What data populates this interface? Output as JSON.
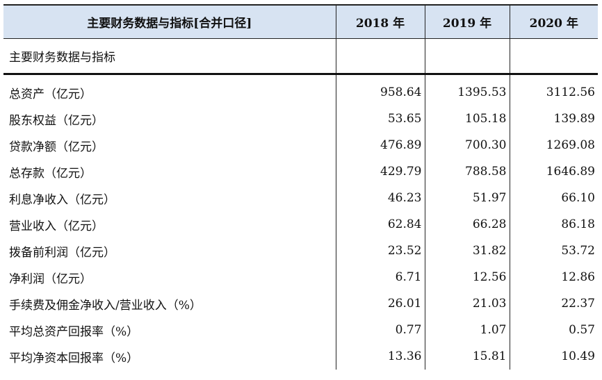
{
  "table": {
    "headers": [
      "主要财务数据与指标[合并口径]",
      "2018 年",
      "2019 年",
      "2020 年"
    ],
    "section_label": "主要财务数据与指标",
    "rows": [
      {
        "label": "总资产（亿元）",
        "values": [
          "958.64",
          "1395.53",
          "3112.56"
        ]
      },
      {
        "label": "股东权益（亿元）",
        "values": [
          "53.65",
          "105.18",
          "139.89"
        ]
      },
      {
        "label": "贷款净额（亿元）",
        "values": [
          "476.89",
          "700.30",
          "1269.08"
        ]
      },
      {
        "label": "总存款（亿元）",
        "values": [
          "429.79",
          "788.58",
          "1646.89"
        ]
      },
      {
        "label": "利息净收入（亿元）",
        "values": [
          "46.23",
          "51.97",
          "66.10"
        ]
      },
      {
        "label": "营业收入（亿元）",
        "values": [
          "62.84",
          "66.28",
          "86.18"
        ]
      },
      {
        "label": "拨备前利润（亿元）",
        "values": [
          "23.52",
          "31.82",
          "53.72"
        ]
      },
      {
        "label": "净利润（亿元）",
        "values": [
          "6.71",
          "12.56",
          "12.86"
        ]
      },
      {
        "label": "手续费及佣金净收入/营业收入（%）",
        "values": [
          "26.01",
          "21.03",
          "22.37"
        ]
      },
      {
        "label": "平均总资产回报率（%）",
        "values": [
          "0.77",
          "1.07",
          "0.57"
        ]
      },
      {
        "label": "平均净资本回报率（%）",
        "values": [
          "13.36",
          "15.81",
          "10.49"
        ]
      }
    ]
  }
}
